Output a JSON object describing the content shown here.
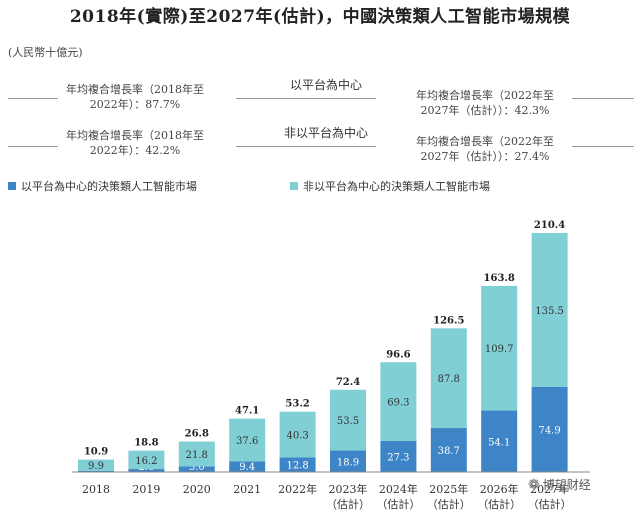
{
  "title": "2018年(實際)至2027年(估計)，中國決策類人工智能市場規模",
  "unit": "(人民幣十億元)",
  "cagr_rows": [
    {
      "center": "以平台為中心",
      "left": [
        "年均複合增長率（2018年至",
        "2022年）：87.7%"
      ],
      "right": [
        "年均複合增長率（2022年至",
        "2027年（估計））：42.3%"
      ]
    },
    {
      "center": "非以平台為中心",
      "left": [
        "年均複合增長率（2018年至",
        "2022年）：42.2%"
      ],
      "right": [
        "年均複合增長率（2022年至",
        "2027年（估計））：27.4%"
      ]
    }
  ],
  "legend": [
    {
      "label": "以平台為中心的決策類人工智能市場",
      "color": "#3d85c6"
    },
    {
      "label": "非以平台為中心的決策類人工智能市場",
      "color": "#7fcfd4"
    }
  ],
  "watermark": "博望财经",
  "chart_data": {
    "type": "bar",
    "stacked": true,
    "categories": [
      "2018",
      "2019",
      "2020",
      "2021",
      "2022年",
      "2023年\n（估計）",
      "2024年\n（估計）",
      "2025年\n（估計）",
      "2026年\n（估計）",
      "2027年\n（估計）"
    ],
    "series": [
      {
        "name": "以平台為中心的決策類人工智能市場",
        "color": "#3d85c6",
        "values": [
          1.0,
          2.6,
          5.0,
          9.4,
          12.8,
          18.9,
          27.3,
          38.7,
          54.1,
          74.9
        ]
      },
      {
        "name": "非以平台為中心的決策類人工智能市場",
        "color": "#7fcfd4",
        "values": [
          9.9,
          16.2,
          21.8,
          37.6,
          40.3,
          53.5,
          69.3,
          87.8,
          109.7,
          135.5
        ]
      }
    ],
    "totals": [
      10.9,
      18.8,
      26.8,
      47.1,
      53.2,
      72.4,
      96.6,
      126.5,
      163.8,
      210.4
    ],
    "ylim": [
      0,
      210.4
    ]
  }
}
